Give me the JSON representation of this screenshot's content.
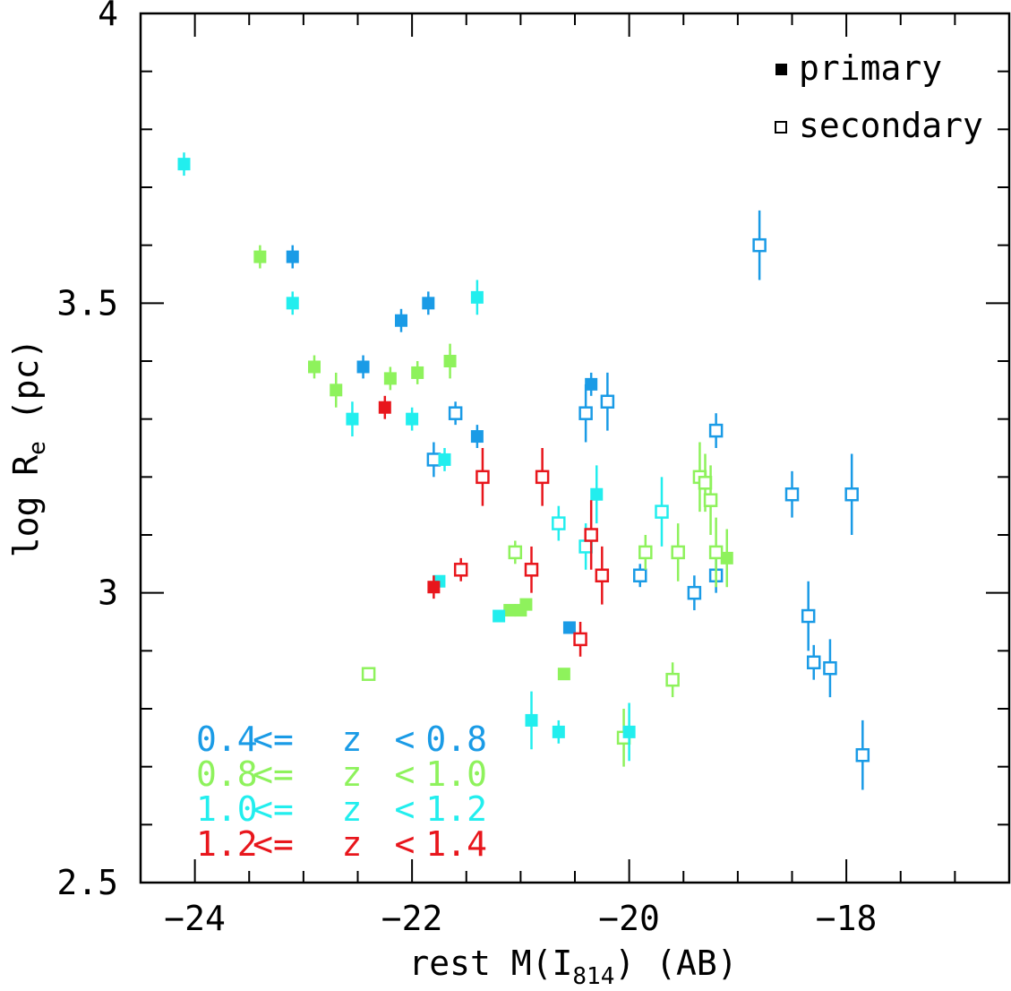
{
  "chart_data": {
    "type": "scatter",
    "xlabel": {
      "prefix": "rest M(I",
      "sub": "814",
      "suffix": ") (AB)"
    },
    "ylabel": {
      "prefix": "log R",
      "sub": "e",
      "suffix": " (pc)"
    },
    "xlim": [
      -24.5,
      -16.5
    ],
    "ylim": [
      2.5,
      4.0
    ],
    "xticks": [
      {
        "value": -24,
        "label": "−24"
      },
      {
        "value": -22,
        "label": "−22"
      },
      {
        "value": -20,
        "label": "−20"
      },
      {
        "value": -18,
        "label": "−18"
      }
    ],
    "yticks": [
      {
        "value": 2.5,
        "label": "2.5"
      },
      {
        "value": 3.0,
        "label": "3"
      },
      {
        "value": 3.5,
        "label": "3.5"
      },
      {
        "value": 4.0,
        "label": "4"
      }
    ],
    "xminor_step": 0.5,
    "yminor_step": 0.1,
    "legend": {
      "position": "top-right",
      "entries": [
        {
          "label": "primary",
          "marker": "filled-square"
        },
        {
          "label": "secondary",
          "marker": "open-square"
        }
      ]
    },
    "redshift_bins": [
      {
        "name": "0.4 <= z < 0.8",
        "text": [
          "0.4",
          "<=",
          "z",
          "<",
          "0.8"
        ],
        "color": "#1a9be6"
      },
      {
        "name": "0.8 <= z < 1.0",
        "text": [
          "0.8",
          "<=",
          "z",
          "<",
          "1.0"
        ],
        "color": "#8ef25c"
      },
      {
        "name": "1.0 <= z < 1.2",
        "text": [
          "1.0",
          "<=",
          "z",
          "<",
          "1.2"
        ],
        "color": "#22eeee"
      },
      {
        "name": "1.2 <= z < 1.4",
        "text": [
          "1.2",
          "<=",
          "z",
          "<",
          "1.4"
        ],
        "color": "#e8161c"
      }
    ],
    "series": [
      {
        "name": "0.4 <= z < 0.8",
        "color": "#1a9be6",
        "points": [
          {
            "x": -23.1,
            "y": 3.58,
            "err": 0.02,
            "type": "primary"
          },
          {
            "x": -22.45,
            "y": 3.39,
            "err": 0.02,
            "type": "primary"
          },
          {
            "x": -22.1,
            "y": 3.47,
            "err": 0.02,
            "type": "primary"
          },
          {
            "x": -21.85,
            "y": 3.5,
            "err": 0.02,
            "type": "primary"
          },
          {
            "x": -21.4,
            "y": 3.27,
            "err": 0.02,
            "type": "primary"
          },
          {
            "x": -20.35,
            "y": 3.36,
            "err": 0.02,
            "type": "primary"
          },
          {
            "x": -20.55,
            "y": 2.94,
            "err": 0.01,
            "type": "primary"
          },
          {
            "x": -21.8,
            "y": 3.23,
            "err": 0.03,
            "type": "secondary"
          },
          {
            "x": -21.6,
            "y": 3.31,
            "err": 0.02,
            "type": "secondary"
          },
          {
            "x": -20.4,
            "y": 3.31,
            "err": 0.05,
            "type": "secondary"
          },
          {
            "x": -20.2,
            "y": 3.33,
            "err": 0.05,
            "type": "secondary"
          },
          {
            "x": -19.9,
            "y": 3.03,
            "err": 0.02,
            "type": "secondary"
          },
          {
            "x": -19.4,
            "y": 3.0,
            "err": 0.03,
            "type": "secondary"
          },
          {
            "x": -19.2,
            "y": 3.28,
            "err": 0.03,
            "type": "secondary"
          },
          {
            "x": -19.2,
            "y": 3.03,
            "err": 0.03,
            "type": "secondary"
          },
          {
            "x": -18.8,
            "y": 3.6,
            "err": 0.06,
            "type": "secondary"
          },
          {
            "x": -18.5,
            "y": 3.17,
            "err": 0.04,
            "type": "secondary"
          },
          {
            "x": -17.95,
            "y": 3.17,
            "err": 0.07,
            "type": "secondary"
          },
          {
            "x": -18.35,
            "y": 2.96,
            "err": 0.06,
            "type": "secondary"
          },
          {
            "x": -18.3,
            "y": 2.88,
            "err": 0.03,
            "type": "secondary"
          },
          {
            "x": -18.15,
            "y": 2.87,
            "err": 0.05,
            "type": "secondary"
          },
          {
            "x": -17.85,
            "y": 2.72,
            "err": 0.06,
            "type": "secondary"
          }
        ]
      },
      {
        "name": "0.8 <= z < 1.0",
        "color": "#8ef25c",
        "points": [
          {
            "x": -23.4,
            "y": 3.58,
            "err": 0.02,
            "type": "primary"
          },
          {
            "x": -22.9,
            "y": 3.39,
            "err": 0.02,
            "type": "primary"
          },
          {
            "x": -22.7,
            "y": 3.35,
            "err": 0.03,
            "type": "primary"
          },
          {
            "x": -22.2,
            "y": 3.37,
            "err": 0.02,
            "type": "primary"
          },
          {
            "x": -21.95,
            "y": 3.38,
            "err": 0.02,
            "type": "primary"
          },
          {
            "x": -21.65,
            "y": 3.4,
            "err": 0.03,
            "type": "primary"
          },
          {
            "x": -21.1,
            "y": 2.97,
            "err": 0.01,
            "type": "primary"
          },
          {
            "x": -21.0,
            "y": 2.97,
            "err": 0.01,
            "type": "primary"
          },
          {
            "x": -20.95,
            "y": 2.98,
            "err": 0.01,
            "type": "primary"
          },
          {
            "x": -20.6,
            "y": 2.86,
            "err": 0.01,
            "type": "primary"
          },
          {
            "x": -19.1,
            "y": 3.06,
            "err": 0.05,
            "type": "primary"
          },
          {
            "x": -22.4,
            "y": 2.86,
            "err": 0.01,
            "type": "secondary"
          },
          {
            "x": -21.05,
            "y": 3.07,
            "err": 0.02,
            "type": "secondary"
          },
          {
            "x": -20.05,
            "y": 2.75,
            "err": 0.05,
            "type": "secondary"
          },
          {
            "x": -19.85,
            "y": 3.07,
            "err": 0.03,
            "type": "secondary"
          },
          {
            "x": -19.6,
            "y": 2.85,
            "err": 0.03,
            "type": "secondary"
          },
          {
            "x": -19.55,
            "y": 3.07,
            "err": 0.05,
            "type": "secondary"
          },
          {
            "x": -19.35,
            "y": 3.2,
            "err": 0.06,
            "type": "secondary"
          },
          {
            "x": -19.3,
            "y": 3.19,
            "err": 0.05,
            "type": "secondary"
          },
          {
            "x": -19.25,
            "y": 3.16,
            "err": 0.06,
            "type": "secondary"
          },
          {
            "x": -19.2,
            "y": 3.07,
            "err": 0.06,
            "type": "secondary"
          }
        ]
      },
      {
        "name": "1.0 <= z < 1.2",
        "color": "#22eeee",
        "points": [
          {
            "x": -24.1,
            "y": 3.74,
            "err": 0.02,
            "type": "primary"
          },
          {
            "x": -23.1,
            "y": 3.5,
            "err": 0.02,
            "type": "primary"
          },
          {
            "x": -22.55,
            "y": 3.3,
            "err": 0.03,
            "type": "primary"
          },
          {
            "x": -22.0,
            "y": 3.3,
            "err": 0.02,
            "type": "primary"
          },
          {
            "x": -21.7,
            "y": 3.23,
            "err": 0.02,
            "type": "primary"
          },
          {
            "x": -21.4,
            "y": 3.51,
            "err": 0.03,
            "type": "primary"
          },
          {
            "x": -21.75,
            "y": 3.02,
            "err": 0.01,
            "type": "primary"
          },
          {
            "x": -21.2,
            "y": 2.96,
            "err": 0.01,
            "type": "primary"
          },
          {
            "x": -20.9,
            "y": 2.78,
            "err": 0.05,
            "type": "primary"
          },
          {
            "x": -20.65,
            "y": 2.76,
            "err": 0.02,
            "type": "primary"
          },
          {
            "x": -20.3,
            "y": 3.17,
            "err": 0.05,
            "type": "primary"
          },
          {
            "x": -20.0,
            "y": 2.76,
            "err": 0.05,
            "type": "primary"
          },
          {
            "x": -20.65,
            "y": 3.12,
            "err": 0.03,
            "type": "secondary"
          },
          {
            "x": -20.4,
            "y": 3.08,
            "err": 0.04,
            "type": "secondary"
          },
          {
            "x": -19.7,
            "y": 3.14,
            "err": 0.06,
            "type": "secondary"
          }
        ]
      },
      {
        "name": "1.2 <= z < 1.4",
        "color": "#e8161c",
        "points": [
          {
            "x": -22.25,
            "y": 3.32,
            "err": 0.02,
            "type": "primary"
          },
          {
            "x": -21.8,
            "y": 3.01,
            "err": 0.02,
            "type": "primary"
          },
          {
            "x": -21.55,
            "y": 3.04,
            "err": 0.02,
            "type": "secondary"
          },
          {
            "x": -21.35,
            "y": 3.2,
            "err": 0.05,
            "type": "secondary"
          },
          {
            "x": -20.9,
            "y": 3.04,
            "err": 0.04,
            "type": "secondary"
          },
          {
            "x": -20.8,
            "y": 3.2,
            "err": 0.05,
            "type": "secondary"
          },
          {
            "x": -20.45,
            "y": 2.92,
            "err": 0.03,
            "type": "secondary"
          },
          {
            "x": -20.35,
            "y": 3.1,
            "err": 0.06,
            "type": "secondary"
          },
          {
            "x": -20.25,
            "y": 3.03,
            "err": 0.05,
            "type": "secondary"
          }
        ]
      }
    ]
  }
}
